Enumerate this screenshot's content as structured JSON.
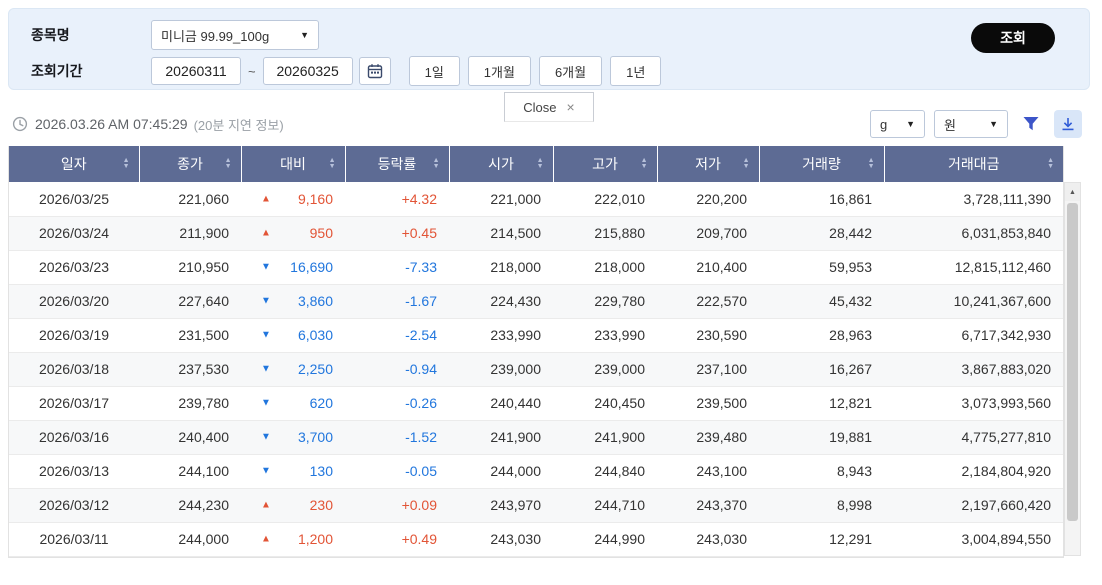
{
  "filter_panel": {
    "item_label": "종목명",
    "item_value": "미니금 99.99_100g",
    "period_label": "조회기간",
    "date_from": "20260311",
    "date_to": "20260325",
    "tilde": "~",
    "period_buttons": [
      "1일",
      "1개월",
      "6개월",
      "1년"
    ],
    "search_label": "조회"
  },
  "close_tab": {
    "label": "Close"
  },
  "info_bar": {
    "timestamp": "2026.03.26 AM 07:45:29",
    "delay_note": "(20분 지연 정보)",
    "unit_value": "g",
    "currency_value": "원"
  },
  "icons": {
    "chevron_down": "▼",
    "up_triangle": "▲",
    "down_triangle": "▼",
    "sort_asc": "▲",
    "sort_desc": "▼",
    "close": "×",
    "scroll_up": "▲"
  },
  "table": {
    "columns": [
      {
        "key": "date",
        "label": "일자"
      },
      {
        "key": "close",
        "label": "종가"
      },
      {
        "key": "change",
        "label": "대비"
      },
      {
        "key": "rate",
        "label": "등락률"
      },
      {
        "key": "open",
        "label": "시가"
      },
      {
        "key": "high",
        "label": "고가"
      },
      {
        "key": "low",
        "label": "저가"
      },
      {
        "key": "volume",
        "label": "거래량"
      },
      {
        "key": "amount",
        "label": "거래대금"
      }
    ],
    "rows": [
      {
        "date": "2026/03/25",
        "close": "221,060",
        "dir": "up",
        "change": "9,160",
        "rate": "+4.32",
        "open": "221,000",
        "high": "222,010",
        "low": "220,200",
        "volume": "16,861",
        "amount": "3,728,111,390"
      },
      {
        "date": "2026/03/24",
        "close": "211,900",
        "dir": "up",
        "change": "950",
        "rate": "+0.45",
        "open": "214,500",
        "high": "215,880",
        "low": "209,700",
        "volume": "28,442",
        "amount": "6,031,853,840"
      },
      {
        "date": "2026/03/23",
        "close": "210,950",
        "dir": "down",
        "change": "16,690",
        "rate": "-7.33",
        "open": "218,000",
        "high": "218,000",
        "low": "210,400",
        "volume": "59,953",
        "amount": "12,815,112,460"
      },
      {
        "date": "2026/03/20",
        "close": "227,640",
        "dir": "down",
        "change": "3,860",
        "rate": "-1.67",
        "open": "224,430",
        "high": "229,780",
        "low": "222,570",
        "volume": "45,432",
        "amount": "10,241,367,600"
      },
      {
        "date": "2026/03/19",
        "close": "231,500",
        "dir": "down",
        "change": "6,030",
        "rate": "-2.54",
        "open": "233,990",
        "high": "233,990",
        "low": "230,590",
        "volume": "28,963",
        "amount": "6,717,342,930"
      },
      {
        "date": "2026/03/18",
        "close": "237,530",
        "dir": "down",
        "change": "2,250",
        "rate": "-0.94",
        "open": "239,000",
        "high": "239,000",
        "low": "237,100",
        "volume": "16,267",
        "amount": "3,867,883,020"
      },
      {
        "date": "2026/03/17",
        "close": "239,780",
        "dir": "down",
        "change": "620",
        "rate": "-0.26",
        "open": "240,440",
        "high": "240,450",
        "low": "239,500",
        "volume": "12,821",
        "amount": "3,073,993,560"
      },
      {
        "date": "2026/03/16",
        "close": "240,400",
        "dir": "down",
        "change": "3,700",
        "rate": "-1.52",
        "open": "241,900",
        "high": "241,900",
        "low": "239,480",
        "volume": "19,881",
        "amount": "4,775,277,810"
      },
      {
        "date": "2026/03/13",
        "close": "244,100",
        "dir": "down",
        "change": "130",
        "rate": "-0.05",
        "open": "244,000",
        "high": "244,840",
        "low": "243,100",
        "volume": "8,943",
        "amount": "2,184,804,920"
      },
      {
        "date": "2026/03/12",
        "close": "244,230",
        "dir": "up",
        "change": "230",
        "rate": "+0.09",
        "open": "243,970",
        "high": "244,710",
        "low": "243,370",
        "volume": "8,998",
        "amount": "2,197,660,420"
      },
      {
        "date": "2026/03/11",
        "close": "244,000",
        "dir": "up",
        "change": "1,200",
        "rate": "+0.49",
        "open": "243,030",
        "high": "244,990",
        "low": "243,030",
        "volume": "12,291",
        "amount": "3,004,894,550"
      }
    ]
  },
  "colors": {
    "up": "#e25436",
    "down": "#2176dd",
    "header_bg": "#5d6b94",
    "panel_bg": "#e9f1fb",
    "accent_blue": "#2f5bd7"
  }
}
